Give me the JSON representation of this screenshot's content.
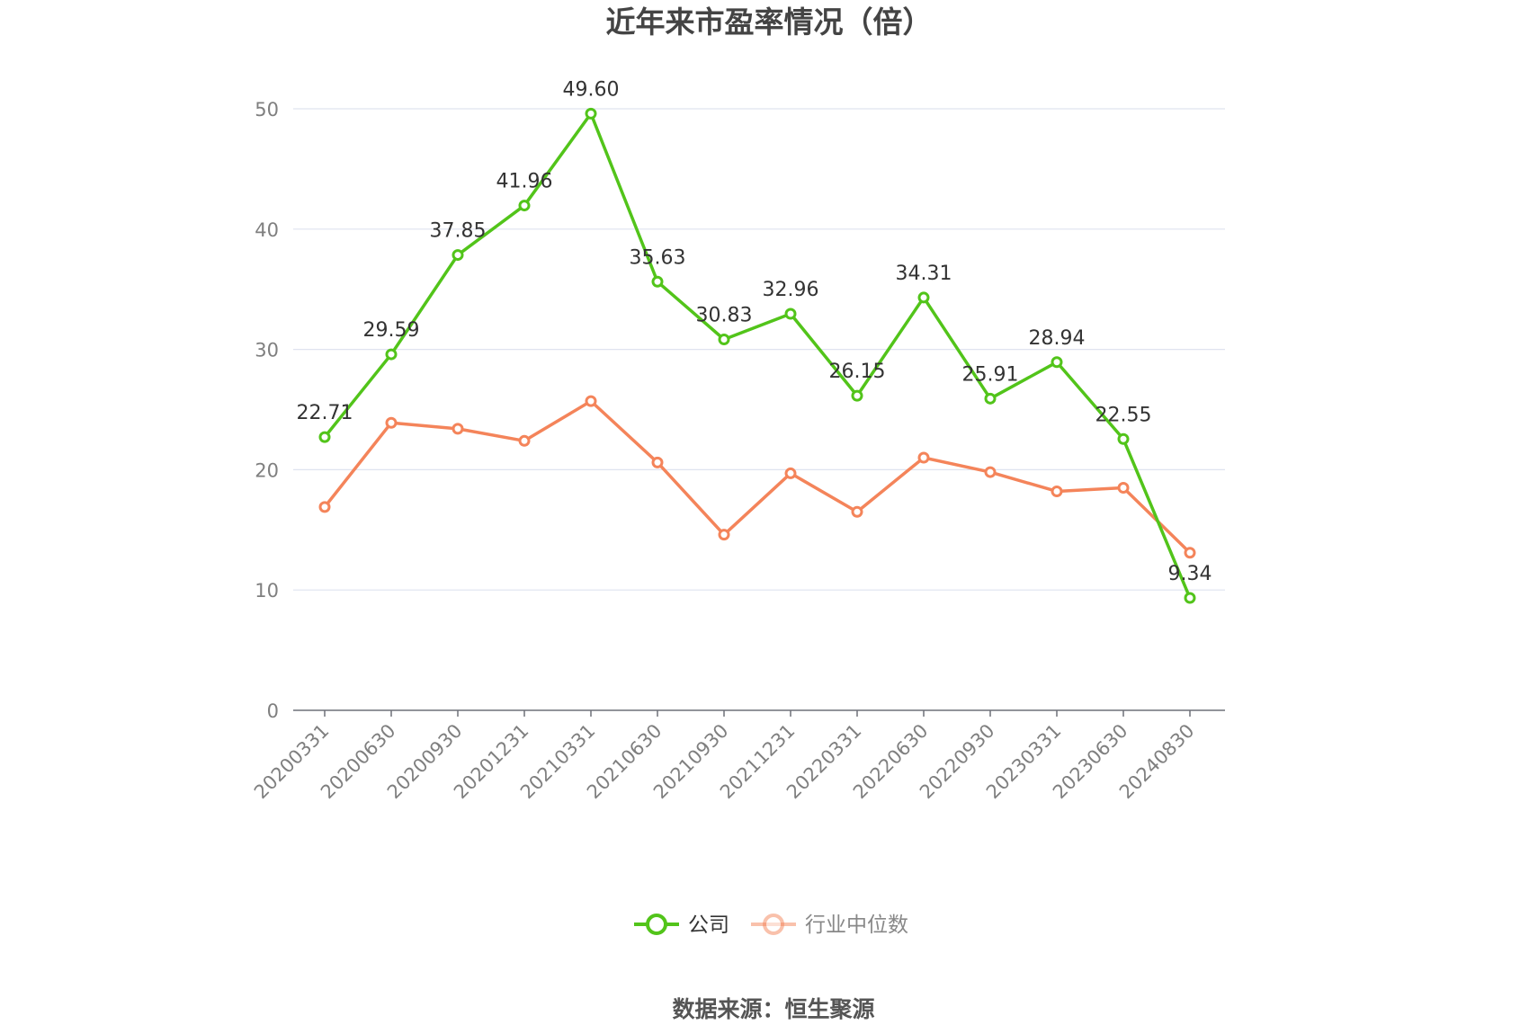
{
  "chart_data": {
    "type": "line",
    "title": "近年来市盈率情况（倍）",
    "categories": [
      "20200331",
      "20200630",
      "20200930",
      "20201231",
      "20210331",
      "20210630",
      "20210930",
      "20211231",
      "20220331",
      "20220630",
      "20220930",
      "20230331",
      "20230630",
      "20240830"
    ],
    "series": [
      {
        "name": "公司",
        "color": "#52c41a",
        "values": [
          22.71,
          29.59,
          37.85,
          41.96,
          49.6,
          35.63,
          30.83,
          32.96,
          26.15,
          34.31,
          25.91,
          28.94,
          22.55,
          9.34
        ],
        "labels": [
          "22.71",
          "29.59",
          "37.85",
          "41.96",
          "49.60",
          "35.63",
          "30.83",
          "32.96",
          "26.15",
          "34.31",
          "25.91",
          "28.94",
          "22.55",
          "9.34"
        ]
      },
      {
        "name": "行业中位数",
        "color": "#f4845a",
        "values": [
          16.9,
          23.9,
          23.4,
          22.4,
          25.7,
          20.6,
          14.6,
          19.7,
          16.5,
          21.0,
          19.8,
          18.2,
          18.5,
          13.1
        ]
      }
    ],
    "yticks": [
      "0",
      "10",
      "20",
      "30",
      "40",
      "50"
    ],
    "ylim": [
      0,
      50
    ],
    "grid": true,
    "legend_position": "bottom-center",
    "source": "数据来源：恒生聚源"
  }
}
